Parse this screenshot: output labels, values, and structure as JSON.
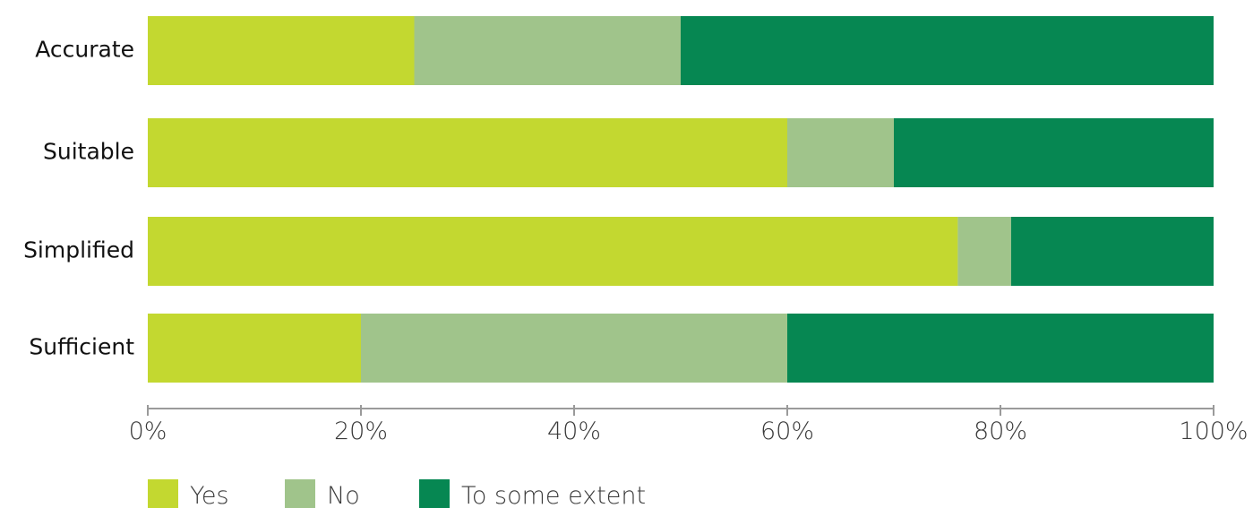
{
  "chart_data": {
    "type": "bar",
    "orientation": "horizontal",
    "stacked": true,
    "categories": [
      "Accurate",
      "Suitable",
      "Simplified",
      "Sufficient"
    ],
    "series": [
      {
        "name": "Yes",
        "color": "#c3d830",
        "values": [
          25,
          60,
          76,
          20
        ]
      },
      {
        "name": "No",
        "color": "#a0c48b",
        "values": [
          25,
          10,
          5,
          40
        ]
      },
      {
        "name": "To some extent",
        "color": "#068752",
        "values": [
          50,
          30,
          19,
          40
        ]
      }
    ],
    "xlim": [
      0,
      100
    ],
    "xticks": [
      0,
      20,
      40,
      60,
      80,
      100
    ],
    "xtick_labels": [
      "0%",
      "20%",
      "40%",
      "60%",
      "80%",
      "100%"
    ],
    "title": "",
    "xlabel": "",
    "ylabel": "",
    "grid": false,
    "legend_position": "bottom-left"
  }
}
